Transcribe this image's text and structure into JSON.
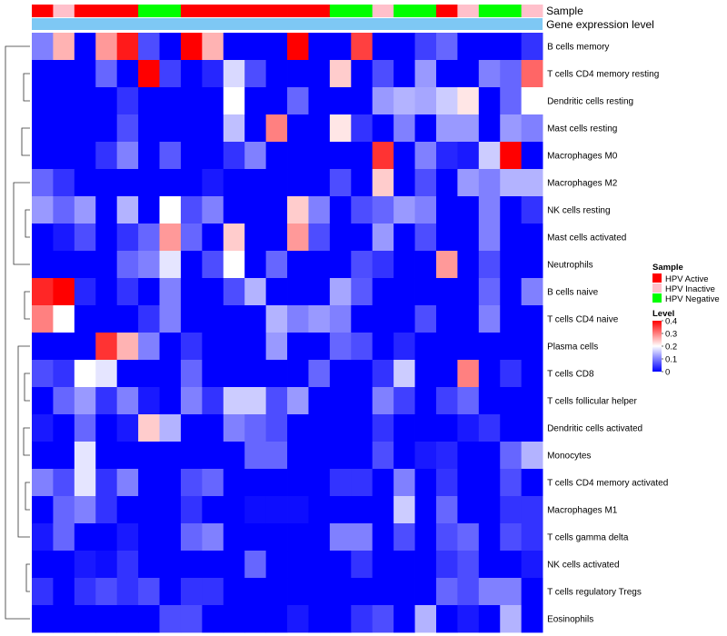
{
  "chart_data": {
    "type": "heatmap",
    "annotation_labels": [
      "Sample",
      "Gene expression level"
    ],
    "sample_groups": [
      "HPV Active",
      "HPV Inactive",
      "HPV Active",
      "HPV Active",
      "HPV Active",
      "HPV Negative",
      "HPV Negative",
      "HPV Active",
      "HPV Active",
      "HPV Active",
      "HPV Active",
      "HPV Active",
      "HPV Active",
      "HPV Active",
      "HPV Negative",
      "HPV Negative",
      "HPV Inactive",
      "HPV Negative",
      "HPV Negative",
      "HPV Active",
      "HPV Inactive",
      "HPV Negative",
      "HPV Negative",
      "HPV Inactive"
    ],
    "gene_expression_color": "#7ec8f4",
    "rows": [
      "B cells memory",
      "T cells CD4 memory resting",
      "Dendritic cells resting",
      "Mast cells resting",
      "Macrophages M0",
      "Macrophages M2",
      "NK cells resting",
      "Mast cells activated",
      "Neutrophils",
      "B cells naive",
      "T cells CD4 naive",
      "Plasma cells",
      "T cells CD8",
      "T cells follicular helper",
      "Dendritic cells activated",
      "Monocytes",
      "T cells CD4 memory activated",
      "Macrophages M1",
      "T cells gamma delta",
      "NK cells activated",
      "T cells regulatory  Tregs",
      "Eosinophils"
    ],
    "values": [
      [
        0.1,
        0.26,
        0.0,
        0.28,
        0.38,
        0.06,
        0.0,
        0.4,
        0.26,
        0.0,
        0.0,
        0.0,
        0.4,
        0.0,
        0.0,
        0.35,
        0.0,
        0.0,
        0.05,
        0.08,
        0.0,
        0.0,
        0.0,
        0.04
      ],
      [
        0.0,
        0.0,
        0.0,
        0.08,
        0.0,
        0.4,
        0.05,
        0.0,
        0.03,
        0.17,
        0.06,
        0.0,
        0.0,
        0.0,
        0.24,
        0.0,
        0.06,
        0.0,
        0.12,
        0.0,
        0.0,
        0.1,
        0.08,
        0.32
      ],
      [
        0.0,
        0.0,
        0.0,
        0.0,
        0.04,
        0.0,
        0.0,
        0.0,
        0.0,
        0.2,
        0.0,
        0.0,
        0.08,
        0.0,
        0.0,
        0.0,
        0.12,
        0.14,
        0.13,
        0.16,
        0.22,
        0.0,
        0.08,
        0.2
      ],
      [
        0.0,
        0.0,
        0.0,
        0.0,
        0.06,
        0.0,
        0.0,
        0.0,
        0.0,
        0.15,
        0.0,
        0.3,
        0.0,
        0.0,
        0.22,
        0.04,
        0.0,
        0.1,
        0.0,
        0.12,
        0.12,
        0.0,
        0.12,
        0.1
      ],
      [
        0.0,
        0.0,
        0.0,
        0.04,
        0.1,
        0.0,
        0.07,
        0.0,
        0.0,
        0.04,
        0.1,
        0.0,
        0.0,
        0.0,
        0.0,
        0.0,
        0.36,
        0.0,
        0.1,
        0.03,
        0.02,
        0.16,
        0.4,
        0.0
      ],
      [
        0.08,
        0.04,
        0.0,
        0.0,
        0.0,
        0.0,
        0.0,
        0.0,
        0.02,
        0.0,
        0.0,
        0.0,
        0.0,
        0.0,
        0.06,
        0.0,
        0.24,
        0.0,
        0.06,
        0.0,
        0.12,
        0.1,
        0.14,
        0.14
      ],
      [
        0.12,
        0.08,
        0.12,
        0.0,
        0.14,
        0.0,
        0.2,
        0.06,
        0.1,
        0.0,
        0.0,
        0.0,
        0.24,
        0.1,
        0.0,
        0.06,
        0.08,
        0.12,
        0.1,
        0.0,
        0.0,
        0.1,
        0.0,
        0.04
      ],
      [
        0.0,
        0.02,
        0.06,
        0.0,
        0.04,
        0.08,
        0.28,
        0.08,
        0.0,
        0.24,
        0.0,
        0.0,
        0.28,
        0.06,
        0.0,
        0.0,
        0.12,
        0.0,
        0.06,
        0.0,
        0.0,
        0.1,
        0.0,
        0.0
      ],
      [
        0.0,
        0.0,
        0.0,
        0.0,
        0.08,
        0.1,
        0.18,
        0.0,
        0.06,
        0.2,
        0.0,
        0.08,
        0.0,
        0.0,
        0.0,
        0.06,
        0.04,
        0.0,
        0.0,
        0.28,
        0.0,
        0.06,
        0.0,
        0.0
      ],
      [
        0.37,
        0.4,
        0.03,
        0.0,
        0.04,
        0.0,
        0.1,
        0.0,
        0.0,
        0.06,
        0.14,
        0.0,
        0.0,
        0.0,
        0.13,
        0.07,
        0.0,
        0.0,
        0.0,
        0.0,
        0.0,
        0.08,
        0.0,
        0.1
      ],
      [
        0.3,
        0.2,
        0.0,
        0.0,
        0.0,
        0.04,
        0.1,
        0.0,
        0.0,
        0.0,
        0.0,
        0.14,
        0.1,
        0.12,
        0.1,
        0.0,
        0.0,
        0.0,
        0.06,
        0.0,
        0.0,
        0.1,
        0.0,
        0.0
      ],
      [
        0.0,
        0.0,
        0.0,
        0.36,
        0.26,
        0.1,
        0.0,
        0.04,
        0.0,
        0.0,
        0.0,
        0.12,
        0.0,
        0.0,
        0.08,
        0.06,
        0.0,
        0.03,
        0.0,
        0.0,
        0.0,
        0.0,
        0.0,
        0.0
      ],
      [
        0.06,
        0.04,
        0.2,
        0.18,
        0.0,
        0.0,
        0.0,
        0.08,
        0.0,
        0.0,
        0.0,
        0.0,
        0.0,
        0.08,
        0.0,
        0.0,
        0.04,
        0.16,
        0.0,
        0.0,
        0.3,
        0.0,
        0.04,
        0.0
      ],
      [
        0.0,
        0.08,
        0.12,
        0.04,
        0.1,
        0.02,
        0.0,
        0.1,
        0.04,
        0.16,
        0.16,
        0.06,
        0.12,
        0.0,
        0.0,
        0.0,
        0.1,
        0.05,
        0.0,
        0.05,
        0.08,
        0.0,
        0.0,
        0.0
      ],
      [
        0.02,
        0.0,
        0.08,
        0.0,
        0.02,
        0.24,
        0.14,
        0.0,
        0.0,
        0.1,
        0.08,
        0.06,
        0.0,
        0.0,
        0.0,
        0.0,
        0.04,
        0.0,
        0.0,
        0.0,
        0.02,
        0.04,
        0.0,
        0.0
      ],
      [
        0.0,
        0.0,
        0.18,
        0.0,
        0.0,
        0.0,
        0.0,
        0.0,
        0.0,
        0.0,
        0.08,
        0.08,
        0.0,
        0.0,
        0.0,
        0.0,
        0.06,
        0.0,
        0.02,
        0.03,
        0.0,
        0.0,
        0.08,
        0.14
      ],
      [
        0.1,
        0.06,
        0.18,
        0.04,
        0.1,
        0.0,
        0.0,
        0.06,
        0.08,
        0.0,
        0.0,
        0.0,
        0.0,
        0.0,
        0.04,
        0.04,
        0.0,
        0.1,
        0.0,
        0.04,
        0.0,
        0.0,
        0.06,
        0.0
      ],
      [
        0.0,
        0.08,
        0.1,
        0.04,
        0.0,
        0.0,
        0.0,
        0.04,
        0.0,
        0.0,
        0.01,
        0.01,
        0.01,
        0.0,
        0.0,
        0.0,
        0.0,
        0.16,
        0.0,
        0.08,
        0.0,
        0.0,
        0.04,
        0.04
      ],
      [
        0.02,
        0.08,
        0.0,
        0.0,
        0.02,
        0.0,
        0.0,
        0.08,
        0.1,
        0.0,
        0.0,
        0.0,
        0.0,
        0.0,
        0.1,
        0.1,
        0.0,
        0.06,
        0.0,
        0.06,
        0.08,
        0.0,
        0.06,
        0.04
      ],
      [
        0.0,
        0.0,
        0.02,
        0.01,
        0.04,
        0.0,
        0.0,
        0.0,
        0.0,
        0.0,
        0.08,
        0.0,
        0.0,
        0.0,
        0.0,
        0.04,
        0.0,
        0.0,
        0.0,
        0.04,
        0.06,
        0.0,
        0.0,
        0.02
      ],
      [
        0.04,
        0.0,
        0.04,
        0.06,
        0.04,
        0.06,
        0.0,
        0.04,
        0.04,
        0.0,
        0.0,
        0.0,
        0.0,
        0.0,
        0.0,
        0.0,
        0.0,
        0.0,
        0.0,
        0.08,
        0.06,
        0.1,
        0.1,
        0.0
      ],
      [
        0.0,
        0.0,
        0.0,
        0.0,
        0.0,
        0.0,
        0.06,
        0.06,
        0.0,
        0.0,
        0.0,
        0.0,
        0.02,
        0.0,
        0.0,
        0.04,
        0.06,
        0.0,
        0.14,
        0.0,
        0.02,
        0.0,
        0.14,
        0.0
      ]
    ],
    "legend": {
      "sample_title": "Sample",
      "sample_entries": [
        {
          "label": "HPV Active",
          "color": "#ff0000"
        },
        {
          "label": "HPV Inactive",
          "color": "#ffc0cb"
        },
        {
          "label": "HPV Negative",
          "color": "#00ff00"
        }
      ],
      "level_title": "Level",
      "level_ticks": [
        "0.4",
        "0.3",
        "0.2",
        "0.1",
        "0"
      ],
      "level_range": [
        0,
        0.4
      ]
    },
    "colors": {
      "low": "#0000ff",
      "mid": "#ffffff",
      "high": "#ff0000"
    }
  }
}
